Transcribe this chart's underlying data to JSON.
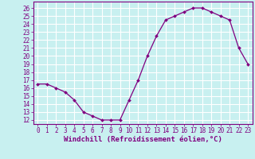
{
  "x": [
    0,
    1,
    2,
    3,
    4,
    5,
    6,
    7,
    8,
    9,
    10,
    11,
    12,
    13,
    14,
    15,
    16,
    17,
    18,
    19,
    20,
    21,
    22,
    23
  ],
  "y": [
    16.5,
    16.5,
    16.0,
    15.5,
    14.5,
    13.0,
    12.5,
    12.0,
    12.0,
    12.0,
    14.5,
    17.0,
    20.0,
    22.5,
    24.5,
    25.0,
    25.5,
    26.0,
    26.0,
    25.5,
    25.0,
    24.5,
    21.0,
    19.0
  ],
  "line_color": "#800080",
  "marker_color": "#800080",
  "bg_color": "#c8f0f0",
  "grid_color": "#ffffff",
  "ylabel_ticks": [
    12,
    13,
    14,
    15,
    16,
    17,
    18,
    19,
    20,
    21,
    22,
    23,
    24,
    25,
    26
  ],
  "xlabel_ticks": [
    0,
    1,
    2,
    3,
    4,
    5,
    6,
    7,
    8,
    9,
    10,
    11,
    12,
    13,
    14,
    15,
    16,
    17,
    18,
    19,
    20,
    21,
    22,
    23
  ],
  "ylim": [
    11.5,
    26.8
  ],
  "xlim": [
    -0.5,
    23.5
  ],
  "xlabel": "Windchill (Refroidissement éolien,°C)",
  "font_color": "#800080",
  "tick_fontsize": 5.5,
  "label_fontsize": 6.5
}
